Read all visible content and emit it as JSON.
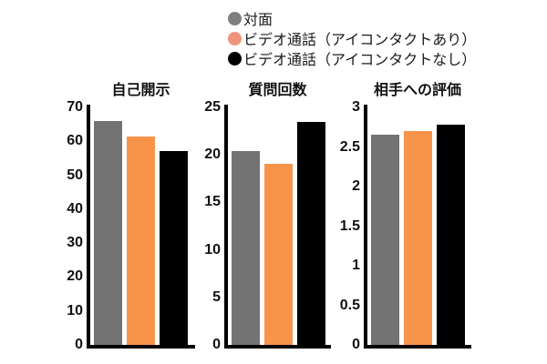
{
  "figure": {
    "background": "#ffffff",
    "axis_color": "#000000"
  },
  "legend": {
    "position": "top",
    "items": [
      {
        "label": "対面",
        "color": "#7f7f7f",
        "marker": "circle"
      },
      {
        "label": "ビデオ通話（アイコンタクトあり）",
        "color": "#ef937b",
        "marker": "circle"
      },
      {
        "label": "ビデオ通話（アイコンタクトなし）",
        "color": "#000000",
        "marker": "circle"
      }
    ]
  },
  "chart_data": [
    {
      "type": "bar",
      "title": "自己開示",
      "categories": [
        "対面",
        "ビデオ通話（アイコンタクトあり）",
        "ビデオ通話（アイコンタクトなし）"
      ],
      "values": [
        66,
        61.5,
        57
      ],
      "bar_colors": [
        "#737373",
        "#f8944a",
        "#000000"
      ],
      "xlabel": "",
      "ylabel": "",
      "ylim": [
        0,
        70
      ],
      "ytick_labels": [
        "0",
        "10",
        "20",
        "30",
        "40",
        "50",
        "60",
        "70"
      ],
      "grid": false,
      "legend_position": "top"
    },
    {
      "type": "bar",
      "title": "質問回数",
      "categories": [
        "対面",
        "ビデオ通話（アイコンタクトあり）",
        "ビデオ通話（アイコンタクトなし）"
      ],
      "values": [
        20.4,
        19.1,
        23.5
      ],
      "bar_colors": [
        "#737373",
        "#f8944a",
        "#000000"
      ],
      "xlabel": "",
      "ylabel": "",
      "ylim": [
        0,
        25
      ],
      "ytick_labels": [
        "0",
        "5",
        "10",
        "15",
        "20",
        "25"
      ],
      "grid": false,
      "legend_position": "top"
    },
    {
      "type": "bar",
      "title": "相手への評価",
      "categories": [
        "対面",
        "ビデオ通話（アイコンタクトあり）",
        "ビデオ通話（アイコンタクトなし）"
      ],
      "values": [
        2.66,
        2.7,
        2.78
      ],
      "bar_colors": [
        "#737373",
        "#f8944a",
        "#000000"
      ],
      "xlabel": "",
      "ylabel": "",
      "ylim": [
        0,
        3
      ],
      "ytick_labels": [
        "0",
        "0.5",
        "1",
        "1.5",
        "2",
        "2.5",
        "3"
      ],
      "grid": false,
      "legend_position": "top"
    }
  ]
}
